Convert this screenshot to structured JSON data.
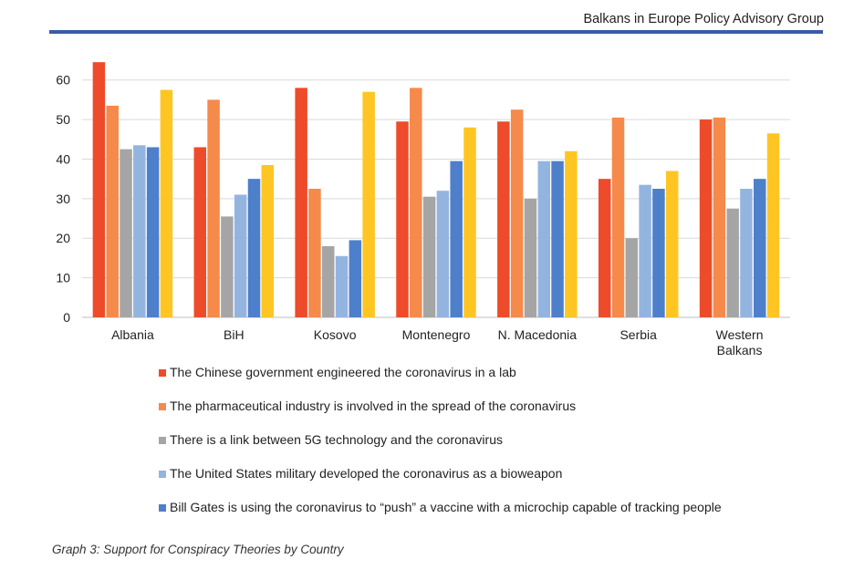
{
  "header": {
    "title": "Balkans in Europe Policy Advisory Group",
    "rule_color": "#3a5ba6"
  },
  "caption": "Graph 3: Support for Conspiracy Theories by Country",
  "chart_data": {
    "type": "bar",
    "title": "",
    "xlabel": "",
    "ylabel": "",
    "ylim": [
      0,
      65
    ],
    "yticks": [
      0,
      10,
      20,
      30,
      40,
      50,
      60
    ],
    "grid": true,
    "legend_position": "bottom",
    "categories": [
      [
        "Albania"
      ],
      [
        "BiH"
      ],
      [
        "Kosovo"
      ],
      [
        "Montenegro"
      ],
      [
        "N. Macedonia"
      ],
      [
        "Serbia"
      ],
      [
        "Western",
        "Balkans"
      ]
    ],
    "series": [
      {
        "name": "The Chinese government engineered the coronavirus in a lab",
        "color": "#ee4b2b",
        "values": [
          64.5,
          43,
          58,
          49.5,
          49.5,
          35,
          50
        ]
      },
      {
        "name": "The pharmaceutical industry is involved in the spread of the coronavirus",
        "color": "#f58a4b",
        "values": [
          53.5,
          55,
          32.5,
          58,
          52.5,
          50.5,
          50.5
        ]
      },
      {
        "name": "There is a link between 5G technology and the coronavirus",
        "color": "#a5a5a5",
        "values": [
          42.5,
          25.5,
          18,
          30.5,
          30,
          20,
          27.5
        ]
      },
      {
        "name": "The United States military developed the coronavirus as a bioweapon",
        "color": "#94b4e0",
        "values": [
          43.5,
          31,
          15.5,
          32,
          39.5,
          33.5,
          32.5
        ]
      },
      {
        "name": "Bill Gates is using the coronavirus to “push” a vaccine with a microchip capable of tracking people",
        "color": "#4d7fcb",
        "values": [
          43,
          35,
          19.5,
          39.5,
          39.5,
          32.5,
          35
        ]
      },
      {
        "name": "",
        "color": "#ffc623",
        "values": [
          57.5,
          38.5,
          57,
          48,
          42,
          37,
          46.5
        ]
      }
    ]
  }
}
